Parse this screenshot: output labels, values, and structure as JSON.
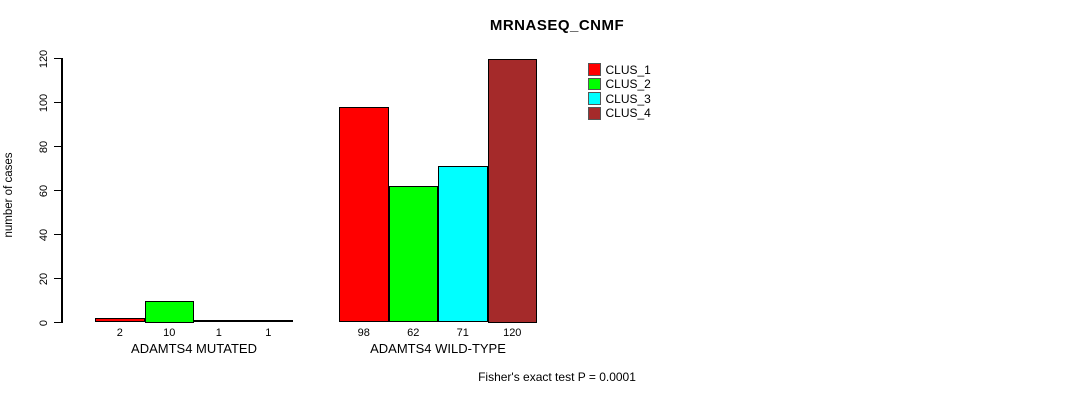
{
  "chart_data": {
    "type": "bar",
    "title": "MRNASEQ_CNMF",
    "ylabel": "number of cases",
    "xlabel": "",
    "ylim": [
      0,
      120
    ],
    "yticks": [
      0,
      20,
      40,
      60,
      80,
      100,
      120
    ],
    "grid": false,
    "legend_position": "top-right",
    "categories": [
      "ADAMTS4 MUTATED",
      "ADAMTS4 WILD-TYPE"
    ],
    "series": [
      {
        "name": "CLUS_1",
        "color": "#FF0000",
        "values": [
          2,
          98
        ]
      },
      {
        "name": "CLUS_2",
        "color": "#00FF00",
        "values": [
          10,
          62
        ]
      },
      {
        "name": "CLUS_3",
        "color": "#00FFFF",
        "values": [
          1,
          71
        ]
      },
      {
        "name": "CLUS_4",
        "color": "#A52A2A",
        "values": [
          1,
          120
        ]
      }
    ],
    "bar_value_labels": [
      [
        "2",
        "10",
        "1",
        "1"
      ],
      [
        "98",
        "62",
        "71",
        "120"
      ]
    ],
    "footnote": "Fisher's exact test P = 0.0001",
    "background_color": "#FFFFFF",
    "axis_color": "#000000"
  }
}
